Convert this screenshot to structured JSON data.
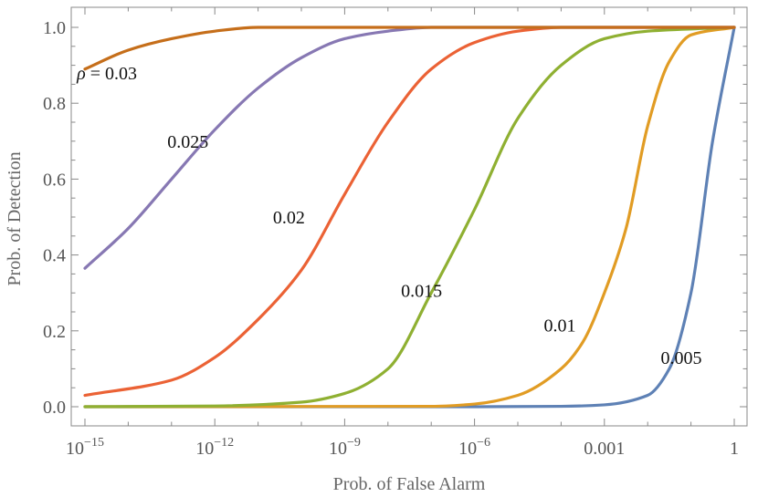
{
  "chart_data": {
    "type": "line",
    "xscale": "log",
    "xlabel": "Prob. of False Alarm",
    "ylabel": "Prob. of Detection",
    "xlim": [
      1e-15,
      1
    ],
    "ylim": [
      0,
      1
    ],
    "x_ticks": [
      {
        "value": 1e-15,
        "base": "10",
        "exp": "−15"
      },
      {
        "value": 1e-12,
        "base": "10",
        "exp": "−12"
      },
      {
        "value": 1e-09,
        "base": "10",
        "exp": "−9"
      },
      {
        "value": 1e-06,
        "base": "10",
        "exp": "−6"
      },
      {
        "value": 0.001,
        "base": "0.001",
        "exp": ""
      },
      {
        "value": 1,
        "base": "1",
        "exp": ""
      }
    ],
    "y_ticks": [
      {
        "value": 0.0,
        "label": "0.0"
      },
      {
        "value": 0.2,
        "label": "0.2"
      },
      {
        "value": 0.4,
        "label": "0.4"
      },
      {
        "value": 0.6,
        "label": "0.6"
      },
      {
        "value": 0.8,
        "label": "0.8"
      },
      {
        "value": 1.0,
        "label": "1.0"
      }
    ],
    "series": [
      {
        "name": "0.005",
        "label": "0.005",
        "label_at": [
          0.02,
          0.13
        ],
        "color": "#5E81B5",
        "x_log10": [
          -15,
          -6,
          -4,
          -3,
          -2,
          -1.5,
          -1,
          -0.5,
          0
        ],
        "values": [
          0.0,
          0.0,
          0.001,
          0.005,
          0.03,
          0.1,
          0.3,
          0.7,
          1.0
        ]
      },
      {
        "name": "0.01",
        "label": "0.01",
        "label_at": [
          4e-05,
          0.215
        ],
        "color": "#E19C24",
        "x_log10": [
          -15,
          -7,
          -6,
          -5,
          -4,
          -3.5,
          -3,
          -2.5,
          -2,
          -1.5,
          -1,
          0
        ],
        "values": [
          0.0,
          0.001,
          0.007,
          0.03,
          0.1,
          0.17,
          0.3,
          0.47,
          0.74,
          0.91,
          0.98,
          1.0
        ]
      },
      {
        "name": "0.015",
        "label": "0.015",
        "label_at": [
          2e-08,
          0.307
        ],
        "color": "#8FB032",
        "x_log10": [
          -15,
          -12,
          -10,
          -9,
          -8,
          -7,
          -6,
          -5,
          -4,
          -3,
          -2,
          0
        ],
        "values": [
          0.0,
          0.002,
          0.012,
          0.035,
          0.1,
          0.3,
          0.52,
          0.76,
          0.9,
          0.97,
          0.99,
          1.0
        ]
      },
      {
        "name": "0.02",
        "label": "0.02",
        "label_at": [
          2.2e-11,
          0.5
        ],
        "color": "#EB6235",
        "x_log10": [
          -15,
          -13,
          -12,
          -11,
          -10,
          -9,
          -8,
          -7,
          -6,
          -5,
          -4,
          -3,
          0
        ],
        "values": [
          0.03,
          0.07,
          0.13,
          0.23,
          0.36,
          0.56,
          0.75,
          0.89,
          0.96,
          0.99,
          1.0,
          1.0,
          1.0
        ]
      },
      {
        "name": "0.025",
        "label": "0.025",
        "label_at": [
          8e-14,
          0.7
        ],
        "color": "#8778B3",
        "x_log10": [
          -15,
          -14,
          -13,
          -12,
          -11,
          -10,
          -9,
          -8,
          -7,
          -6,
          -3,
          0
        ],
        "values": [
          0.365,
          0.47,
          0.6,
          0.73,
          0.84,
          0.92,
          0.97,
          0.99,
          1.0,
          1.0,
          1.0,
          1.0
        ]
      },
      {
        "name": "0.03",
        "label": "ρ = 0.03",
        "label_at": [
          6.5e-16,
          0.88
        ],
        "color": "#C56E1A",
        "x_log10": [
          -15,
          -14,
          -13,
          -12,
          -11,
          -10,
          -9,
          -8,
          0
        ],
        "values": [
          0.89,
          0.94,
          0.97,
          0.99,
          1.0,
          1.0,
          1.0,
          1.0,
          1.0
        ]
      }
    ]
  }
}
